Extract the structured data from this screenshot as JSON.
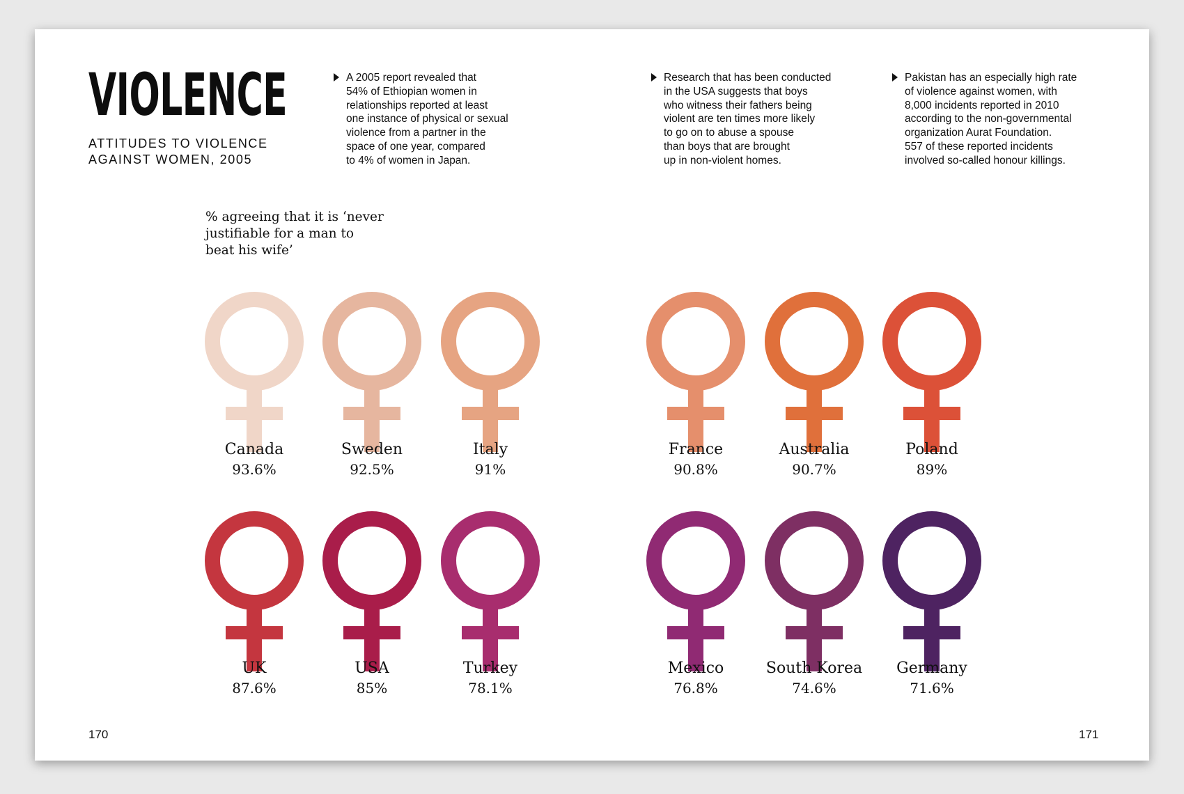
{
  "header": {
    "title": "VIOLENCE",
    "subtitle_line1": "ATTITUDES TO VIOLENCE",
    "subtitle_line2": "AGAINST WOMEN, 2005"
  },
  "facts": [
    {
      "lines": [
        "A 2005 report revealed that",
        "54% of Ethiopian women in",
        "relationships reported at least",
        "one instance of physical or sexual",
        "violence from a partner in the",
        "space of one year, compared",
        "to 4% of women in Japan."
      ]
    },
    {
      "lines": [
        "Research that has been conducted",
        "in the USA suggests that boys",
        "who witness their fathers being",
        "violent are ten times more likely",
        "to go on to abuse a spouse",
        "than boys that are brought",
        "up in non-violent homes."
      ]
    },
    {
      "lines": [
        "Pakistan has an especially high rate",
        "of violence against women, with",
        "8,000 incidents reported in 2010",
        "according to the non-governmental",
        "organization Aurat Foundation.",
        "557 of these reported incidents",
        "involved so-called honour killings."
      ]
    }
  ],
  "chart_question_lines": [
    "% agreeing that it is ‘never",
    "justifiable for a man to",
    "beat his wife’"
  ],
  "chart_data": {
    "type": "pictogram",
    "title": "% agreeing that it is ‘never justifiable for a man to beat his wife’",
    "unit": "%",
    "countries": [
      {
        "country": "Canada",
        "value": 93.6,
        "label": "93.6%",
        "color": "#f0d6c8"
      },
      {
        "country": "Sweden",
        "value": 92.5,
        "label": "92.5%",
        "color": "#e6b69f"
      },
      {
        "country": "Italy",
        "value": 91,
        "label": "91%",
        "color": "#e6a482"
      },
      {
        "country": "France",
        "value": 90.8,
        "label": "90.8%",
        "color": "#e58f6c"
      },
      {
        "country": "Australia",
        "value": 90.7,
        "label": "90.7%",
        "color": "#e0703b"
      },
      {
        "country": "Poland",
        "value": 89,
        "label": "89%",
        "color": "#dc5138"
      },
      {
        "country": "UK",
        "value": 87.6,
        "label": "87.6%",
        "color": "#c4363f"
      },
      {
        "country": "USA",
        "value": 85,
        "label": "85%",
        "color": "#a91d4a"
      },
      {
        "country": "Turkey",
        "value": 78.1,
        "label": "78.1%",
        "color": "#a82d6e"
      },
      {
        "country": "Mexico",
        "value": 76.8,
        "label": "76.8%",
        "color": "#902a73"
      },
      {
        "country": "South Korea",
        "value": 74.6,
        "label": "74.6%",
        "color": "#7e2f63"
      },
      {
        "country": "Germany",
        "value": 71.6,
        "label": "71.6%",
        "color": "#4e2361"
      }
    ]
  },
  "page_numbers": {
    "left": "170",
    "right": "171"
  }
}
